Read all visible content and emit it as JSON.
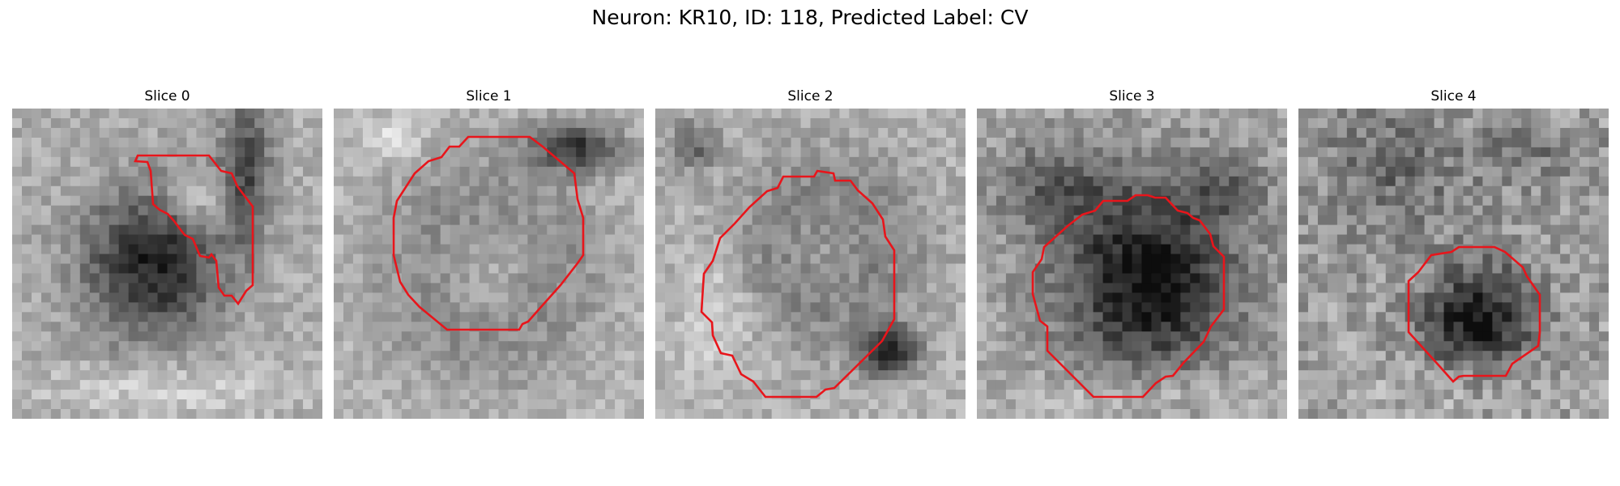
{
  "figure": {
    "suptitle": "Neuron: KR10, ID: 118, Predicted Label: CV",
    "contour_color": "#e8151b",
    "colormap": "grayscale",
    "panels": [
      {
        "title": "Slice 0"
      },
      {
        "title": "Slice 1"
      },
      {
        "title": "Slice 2"
      },
      {
        "title": "Slice 3"
      },
      {
        "title": "Slice 4"
      }
    ]
  }
}
